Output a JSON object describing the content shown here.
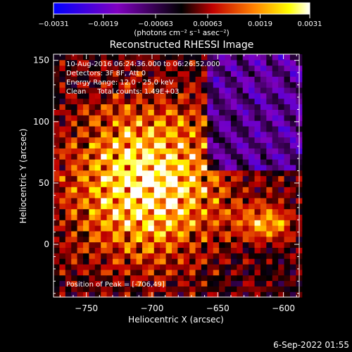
{
  "chart_data": {
    "type": "heatmap",
    "title": "Reconstructed RHESSI Image",
    "xlabel": "Heliocentric X (arcsec)",
    "ylabel": "Heliocentric Y (arcsec)",
    "xlim": [
      -775,
      -588
    ],
    "ylim": [
      -43,
      155
    ],
    "x_ticks": [
      -750,
      -700,
      -650,
      -600
    ],
    "x_tick_labels": [
      "−750",
      "−700",
      "−650",
      "−600"
    ],
    "y_ticks": [
      0,
      50,
      100,
      150
    ],
    "y_tick_labels": [
      "0",
      "50",
      "100",
      "150"
    ],
    "colorbar": {
      "range": [
        -0.0031,
        0.0031
      ],
      "ticks": [
        -0.0031,
        -0.0019,
        -0.00063,
        0.00063,
        0.0019,
        0.0031
      ],
      "tick_labels": [
        "−0.0031",
        "−0.0019",
        "−0.00063",
        "0.00063",
        "0.0019",
        "0.0031"
      ],
      "unit_label": "(photons cm⁻² s⁻¹ asec⁻²)",
      "colors": [
        "#0000ff",
        "#8000c0",
        "#000000",
        "#c00000",
        "#ff8000",
        "#ffff00",
        "#ffffff"
      ]
    },
    "peak": {
      "x": -706,
      "y": 49
    },
    "annotations": {
      "time": "10-Aug-2016 06:24:36.000 to 06:26:52.000",
      "detectors": "Detectors: 3F 8F, Att 0",
      "energy": "Energy Range: 12.0 - 25.0 keV",
      "clean": "Clean     Total counts: 1.49E+03",
      "peak": "Position of Peak = [-706,49]"
    },
    "grid": false
  },
  "footer": {
    "date": "6-Sep-2022 01:55"
  }
}
